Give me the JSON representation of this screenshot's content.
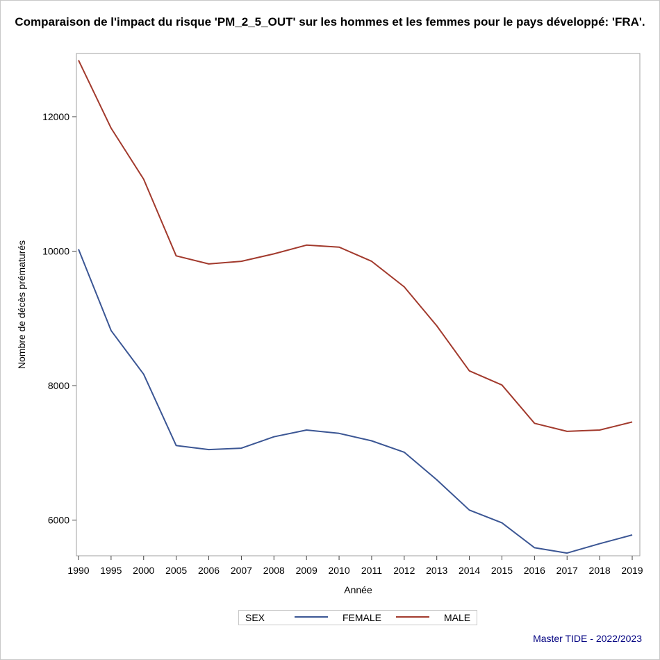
{
  "title": "Comparaison de l'impact du risque 'PM_2_5_OUT' sur les hommes et les femmes pour le pays développé: 'FRA'.",
  "footnote": "Master TIDE - 2022/2023",
  "chart_data": {
    "type": "line",
    "categories": [
      "1990",
      "1995",
      "2000",
      "2005",
      "2006",
      "2007",
      "2008",
      "2009",
      "2010",
      "2011",
      "2012",
      "2013",
      "2014",
      "2015",
      "2016",
      "2017",
      "2018",
      "2019"
    ],
    "series": [
      {
        "name": "FEMALE",
        "color": "#3b5694",
        "values": [
          10030,
          8820,
          8170,
          7110,
          7050,
          7070,
          7240,
          7340,
          7290,
          7180,
          7010,
          6600,
          6150,
          5960,
          5590,
          5510,
          5650,
          5780
        ]
      },
      {
        "name": "MALE",
        "color": "#a23a2d",
        "values": [
          12840,
          11830,
          11070,
          9930,
          9810,
          9850,
          9960,
          10090,
          10060,
          9850,
          9470,
          8890,
          8220,
          8010,
          7440,
          7320,
          7340,
          7460
        ]
      }
    ],
    "xlabel": "Année",
    "ylabel": "Nombre de décès prématurés",
    "yticks": [
      6000,
      8000,
      10000,
      12000
    ],
    "ylim": [
      5470,
      12940
    ],
    "grid": false,
    "legend": {
      "title": "SEX",
      "position": "bottom-center"
    }
  }
}
